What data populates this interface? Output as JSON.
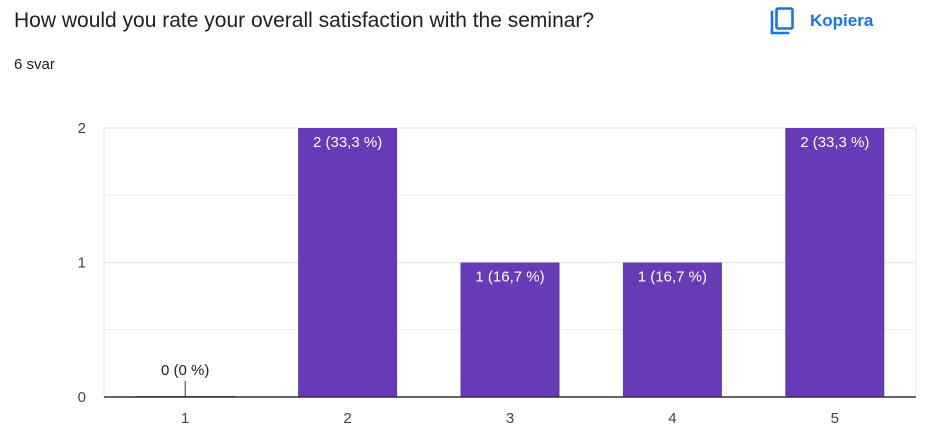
{
  "question": {
    "title": "How would you rate your overall satisfaction with the seminar?",
    "response_count": "6 svar"
  },
  "copy": {
    "label": "Kopiera",
    "icon": "copy-icon"
  },
  "colors": {
    "bar": "#673ab7",
    "accent": "#1a73e8",
    "grid": "#e6e6e6",
    "axis": "#333333"
  },
  "chart_data": {
    "type": "bar",
    "categories": [
      "1",
      "2",
      "3",
      "4",
      "5"
    ],
    "values": [
      0,
      2,
      1,
      1,
      2
    ],
    "data_labels": [
      "0 (0 %)",
      "2 (33,3 %)",
      "1 (16,7 %)",
      "1 (16,7 %)",
      "2 (33,3 %)"
    ],
    "y_ticks": [
      "0",
      "1",
      "2"
    ],
    "ylim": [
      0,
      2
    ],
    "grid": true,
    "legend": "none"
  }
}
